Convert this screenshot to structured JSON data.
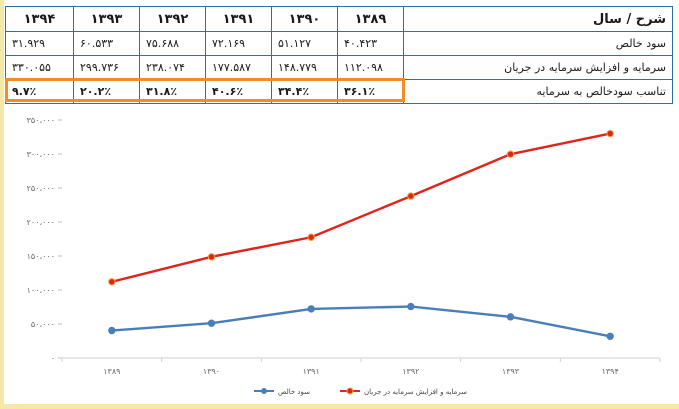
{
  "table": {
    "header": {
      "label": "شرح / سال",
      "years": [
        "۱۳۸۹",
        "۱۳۹۰",
        "۱۳۹۱",
        "۱۳۹۲",
        "۱۳۹۳",
        "۱۳۹۴"
      ]
    },
    "rows": [
      {
        "label": "سود خالص",
        "values": [
          "۴۰.۴۲۳",
          "۵۱.۱۲۷",
          "۷۲.۱۶۹",
          "۷۵.۶۸۸",
          "۶۰.۵۳۳",
          "۳۱.۹۲۹"
        ]
      },
      {
        "label": "سرمایه و افزایش سرمایه در جریان",
        "values": [
          "۱۱۲.۰۹۸",
          "۱۴۸.۷۷۹",
          "۱۷۷.۵۸۷",
          "۲۳۸.۰۷۴",
          "۲۹۹.۷۳۶",
          "۳۳۰.۰۵۵"
        ]
      },
      {
        "label": "تناسب سودخالص به سرمایه",
        "values": [
          "۳۶.۱٪",
          "۳۴.۴٪",
          "۴۰.۶٪",
          "۳۱.۸٪",
          "۲۰.۲٪",
          "۹.۷٪"
        ]
      }
    ]
  },
  "chart_data": {
    "type": "line",
    "categories": [
      "۱۳۸۹",
      "۱۳۹۰",
      "۱۳۹۱",
      "۱۳۹۲",
      "۱۳۹۳",
      "۱۳۹۴"
    ],
    "x": [
      1389,
      1390,
      1391,
      1392,
      1393,
      1394
    ],
    "series": [
      {
        "name": "سود خالص",
        "color": "#4a7ebb",
        "values": [
          40423,
          51127,
          72169,
          75688,
          60533,
          31929
        ]
      },
      {
        "name": "سرمایه و افزایش سرمایه در جریان",
        "color": "#e0241b",
        "values": [
          112098,
          148779,
          177587,
          238074,
          299736,
          330055
        ]
      }
    ],
    "ylim": [
      0,
      350000
    ],
    "yticks": [
      0,
      50000,
      100000,
      150000,
      200000,
      250000,
      300000,
      350000
    ],
    "ytick_labels": [
      "۰",
      "۵۰،۰۰۰",
      "۱۰۰،۰۰۰",
      "۱۵۰،۰۰۰",
      "۲۰۰،۰۰۰",
      "۲۵۰،۰۰۰",
      "۳۰۰،۰۰۰",
      "۳۵۰،۰۰۰"
    ],
    "title": "",
    "xlabel": "",
    "ylabel": "",
    "grid": false,
    "legend_position": "bottom"
  },
  "highlight_color": "#f28c28"
}
